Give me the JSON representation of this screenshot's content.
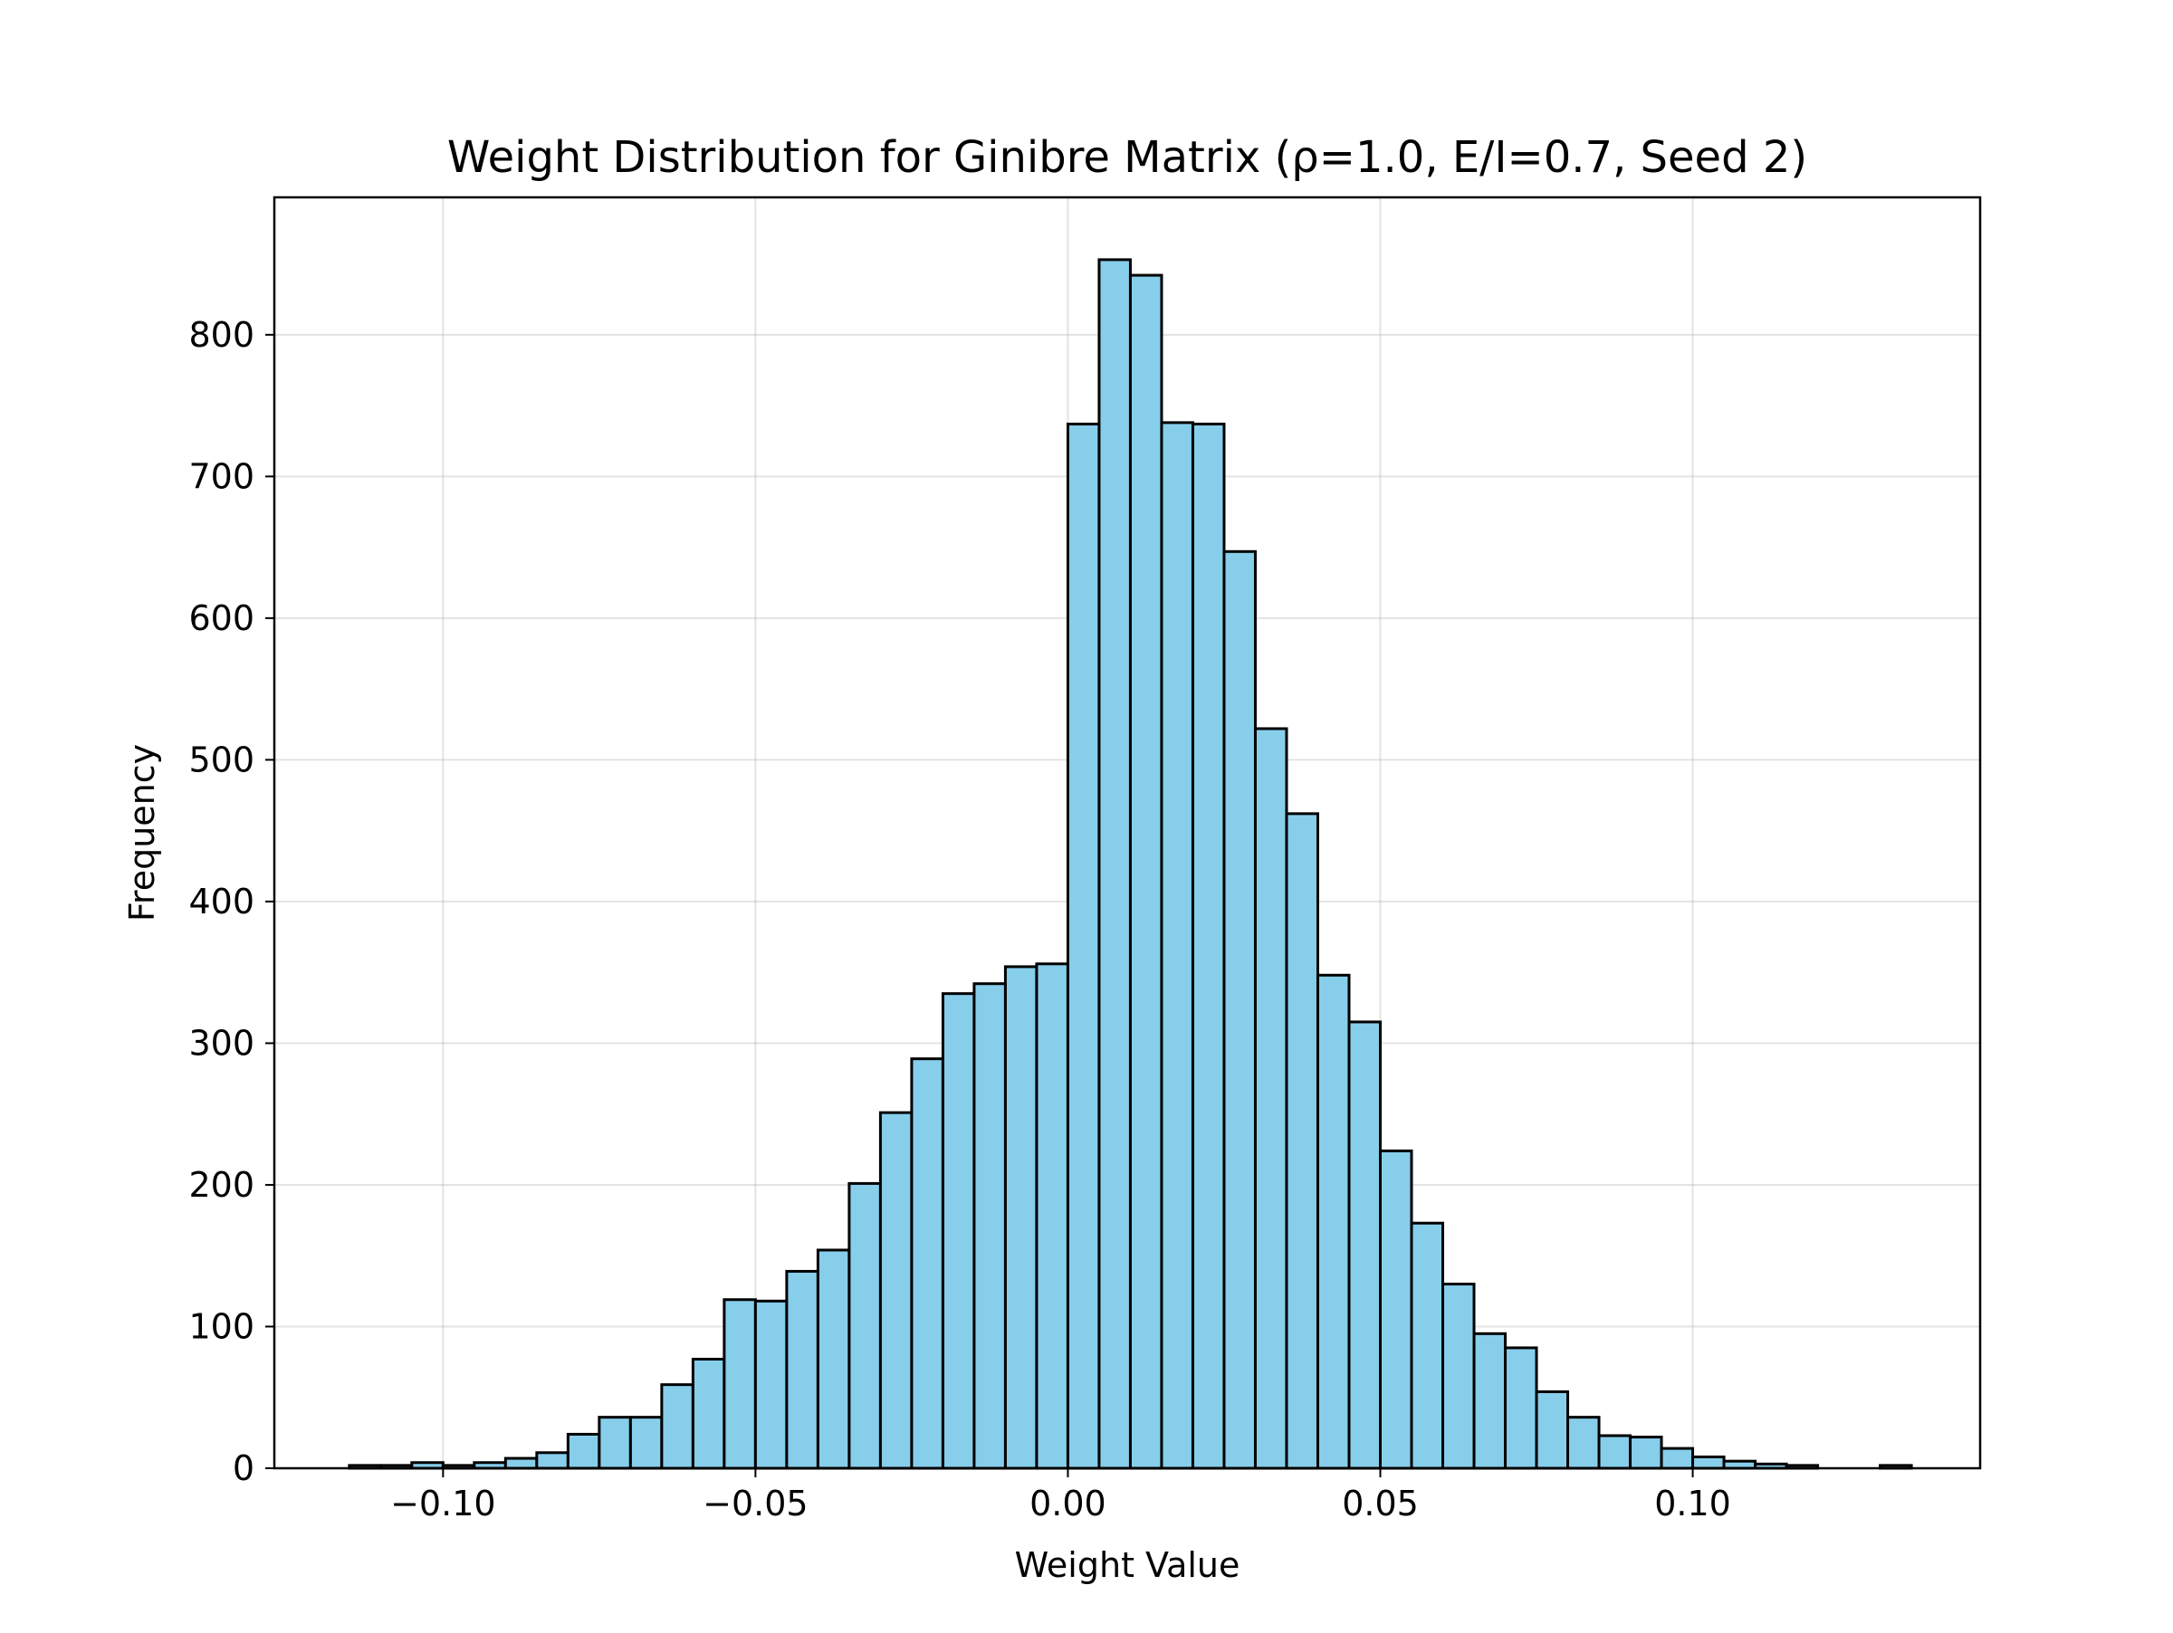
{
  "chart_data": {
    "type": "bar",
    "title": "Weight Distribution for Ginibre Matrix (ρ=1.0, E/I=0.7, Seed 2)",
    "xlabel": "Weight Value",
    "ylabel": "Frequency",
    "xlim": [
      -0.127,
      0.146
    ],
    "ylim": [
      0,
      897
    ],
    "grid": true,
    "bar_color": "#87ceeb",
    "edge_color": "#000000",
    "x_ticks": [
      {
        "value": -0.1,
        "label": "−0.10"
      },
      {
        "value": -0.05,
        "label": "−0.05"
      },
      {
        "value": 0.0,
        "label": "0.00"
      },
      {
        "value": 0.05,
        "label": "0.05"
      },
      {
        "value": 0.1,
        "label": "0.10"
      }
    ],
    "y_ticks": [
      {
        "value": 0,
        "label": "0"
      },
      {
        "value": 100,
        "label": "100"
      },
      {
        "value": 200,
        "label": "200"
      },
      {
        "value": 300,
        "label": "300"
      },
      {
        "value": 400,
        "label": "400"
      },
      {
        "value": 500,
        "label": "500"
      },
      {
        "value": 600,
        "label": "600"
      },
      {
        "value": 700,
        "label": "700"
      },
      {
        "value": 800,
        "label": "800"
      }
    ],
    "bin_start": -0.115,
    "bin_width": 0.005,
    "values": [
      2,
      2,
      4,
      2,
      4,
      7,
      11,
      24,
      36,
      36,
      59,
      77,
      119,
      118,
      139,
      154,
      201,
      251,
      289,
      335,
      342,
      354,
      356,
      737,
      853,
      842,
      738,
      737,
      647,
      522,
      462,
      348,
      315,
      224,
      173,
      130,
      95,
      85,
      54,
      36,
      23,
      22,
      14,
      8,
      5,
      3,
      2,
      0,
      0,
      2
    ]
  }
}
